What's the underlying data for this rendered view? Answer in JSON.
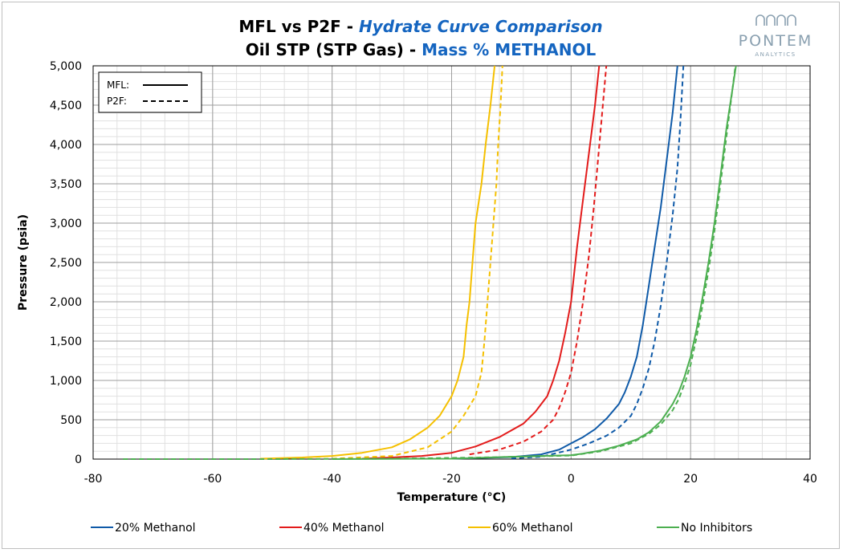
{
  "chart_data": {
    "type": "line",
    "title_line1_prefix": "MFL vs P2F - ",
    "title_line1_accent": "Hydrate Curve Comparison",
    "title_line2_prefix": "Oil STP (STP Gas) - ",
    "title_line2_accent": "Mass % METHANOL",
    "xlabel": "Temperature (°C)",
    "ylabel": "Pressure (psia)",
    "xlim": [
      -80,
      40
    ],
    "ylim": [
      0,
      5000
    ],
    "x_ticks": [
      "-80",
      "-60",
      "-40",
      "-20",
      "0",
      "20",
      "40"
    ],
    "y_ticks": [
      "0",
      "500",
      "1,000",
      "1,500",
      "2,000",
      "2,500",
      "3,000",
      "3,500",
      "4,000",
      "4,500",
      "5,000"
    ],
    "grid": true,
    "legend_position": "bottom",
    "style_legend": [
      {
        "label": "MFL:",
        "dash": "solid"
      },
      {
        "label": "P2F:",
        "dash": "dashed"
      }
    ],
    "series": [
      {
        "name": "20% Methanol",
        "source": "MFL",
        "color": "#0f5aa8",
        "points": [
          [
            -20,
            5
          ],
          [
            -10,
            25
          ],
          [
            -5,
            60
          ],
          [
            -2,
            120
          ],
          [
            0,
            200
          ],
          [
            2,
            280
          ],
          [
            4,
            380
          ],
          [
            6,
            520
          ],
          [
            8,
            700
          ],
          [
            9,
            850
          ],
          [
            10,
            1050
          ],
          [
            11,
            1300
          ],
          [
            12,
            1700
          ],
          [
            13,
            2200
          ],
          [
            14,
            2700
          ],
          [
            15,
            3200
          ],
          [
            16,
            3800
          ],
          [
            17,
            4400
          ],
          [
            17.8,
            5000
          ]
        ]
      },
      {
        "name": "20% Methanol",
        "source": "P2F",
        "color": "#0f5aa8",
        "points": [
          [
            -10,
            10
          ],
          [
            -5,
            30
          ],
          [
            0,
            120
          ],
          [
            3,
            200
          ],
          [
            6,
            300
          ],
          [
            8,
            400
          ],
          [
            10,
            550
          ],
          [
            11,
            700
          ],
          [
            12,
            900
          ],
          [
            13,
            1150
          ],
          [
            14,
            1500
          ],
          [
            15,
            1950
          ],
          [
            16,
            2500
          ],
          [
            17,
            3100
          ],
          [
            17.8,
            3700
          ],
          [
            18.3,
            4300
          ],
          [
            18.8,
            5000
          ]
        ]
      },
      {
        "name": "40% Methanol",
        "source": "MFL",
        "color": "#e31b1b",
        "points": [
          [
            -35,
            5
          ],
          [
            -30,
            20
          ],
          [
            -25,
            40
          ],
          [
            -20,
            80
          ],
          [
            -16,
            160
          ],
          [
            -12,
            280
          ],
          [
            -8,
            450
          ],
          [
            -6,
            600
          ],
          [
            -4,
            800
          ],
          [
            -3,
            1000
          ],
          [
            -2,
            1250
          ],
          [
            -1,
            1600
          ],
          [
            0,
            2000
          ],
          [
            1,
            2700
          ],
          [
            2,
            3300
          ],
          [
            3,
            3900
          ],
          [
            4,
            4500
          ],
          [
            4.7,
            5000
          ]
        ]
      },
      {
        "name": "40% Methanol",
        "source": "P2F",
        "color": "#e31b1b",
        "points": [
          [
            -17,
            60
          ],
          [
            -12,
            120
          ],
          [
            -8,
            220
          ],
          [
            -5,
            350
          ],
          [
            -3,
            500
          ],
          [
            -2,
            650
          ],
          [
            -1,
            850
          ],
          [
            0,
            1100
          ],
          [
            1,
            1500
          ],
          [
            2,
            2000
          ],
          [
            3,
            2600
          ],
          [
            3.8,
            3200
          ],
          [
            4.5,
            3800
          ],
          [
            5.2,
            4400
          ],
          [
            5.9,
            5000
          ]
        ]
      },
      {
        "name": "60% Methanol",
        "source": "MFL",
        "color": "#f5c000",
        "points": [
          [
            -52,
            5
          ],
          [
            -45,
            20
          ],
          [
            -40,
            40
          ],
          [
            -35,
            80
          ],
          [
            -30,
            150
          ],
          [
            -27,
            250
          ],
          [
            -24,
            400
          ],
          [
            -22,
            550
          ],
          [
            -20,
            800
          ],
          [
            -19,
            1000
          ],
          [
            -18,
            1300
          ],
          [
            -17.5,
            1700
          ],
          [
            -17,
            2000
          ],
          [
            -16.5,
            2500
          ],
          [
            -16,
            3000
          ],
          [
            -15,
            3500
          ],
          [
            -14.3,
            4000
          ],
          [
            -13.5,
            4500
          ],
          [
            -12.8,
            5000
          ]
        ]
      },
      {
        "name": "60% Methanol",
        "source": "P2F",
        "color": "#f5c000",
        "points": [
          [
            -40,
            5
          ],
          [
            -30,
            40
          ],
          [
            -24,
            150
          ],
          [
            -20,
            350
          ],
          [
            -18,
            550
          ],
          [
            -16,
            800
          ],
          [
            -15,
            1100
          ],
          [
            -14.5,
            1500
          ],
          [
            -14,
            2000
          ],
          [
            -13.5,
            2500
          ],
          [
            -13,
            3000
          ],
          [
            -12.5,
            3500
          ],
          [
            -12.2,
            4000
          ],
          [
            -11.8,
            4500
          ],
          [
            -11.5,
            5000
          ]
        ]
      },
      {
        "name": "No Inhibitors",
        "source": "MFL",
        "color": "#4caf50",
        "points": [
          [
            -40,
            0
          ],
          [
            -20,
            5
          ],
          [
            -10,
            30
          ],
          [
            0,
            50
          ],
          [
            2,
            70
          ],
          [
            5,
            110
          ],
          [
            8,
            170
          ],
          [
            11,
            250
          ],
          [
            13,
            340
          ],
          [
            15,
            480
          ],
          [
            17,
            700
          ],
          [
            18,
            850
          ],
          [
            19,
            1050
          ],
          [
            20,
            1300
          ],
          [
            21,
            1650
          ],
          [
            22,
            2050
          ],
          [
            23,
            2500
          ],
          [
            24,
            3000
          ],
          [
            25,
            3600
          ],
          [
            26,
            4200
          ],
          [
            27,
            4700
          ],
          [
            27.6,
            5000
          ]
        ]
      },
      {
        "name": "No Inhibitors",
        "source": "P2F",
        "color": "#4caf50",
        "points": [
          [
            -75,
            0
          ],
          [
            -50,
            0
          ],
          [
            -30,
            5
          ],
          [
            -15,
            20
          ],
          [
            0,
            45
          ],
          [
            5,
            100
          ],
          [
            10,
            200
          ],
          [
            13,
            320
          ],
          [
            15,
            440
          ],
          [
            17,
            620
          ],
          [
            18,
            760
          ],
          [
            19,
            960
          ],
          [
            20,
            1200
          ],
          [
            21,
            1550
          ],
          [
            22,
            1950
          ],
          [
            23,
            2400
          ],
          [
            24,
            2900
          ],
          [
            25,
            3500
          ],
          [
            26,
            4100
          ],
          [
            27,
            4700
          ],
          [
            27.5,
            5000
          ]
        ]
      }
    ],
    "legend_entries": [
      {
        "label": "20% Methanol",
        "color": "#0f5aa8"
      },
      {
        "label": "40% Methanol",
        "color": "#e31b1b"
      },
      {
        "label": "60% Methanol",
        "color": "#f5c000"
      },
      {
        "label": "No Inhibitors",
        "color": "#4caf50"
      }
    ]
  },
  "logo": {
    "name": "PONTEM",
    "tagline": "ANALYTICS"
  }
}
